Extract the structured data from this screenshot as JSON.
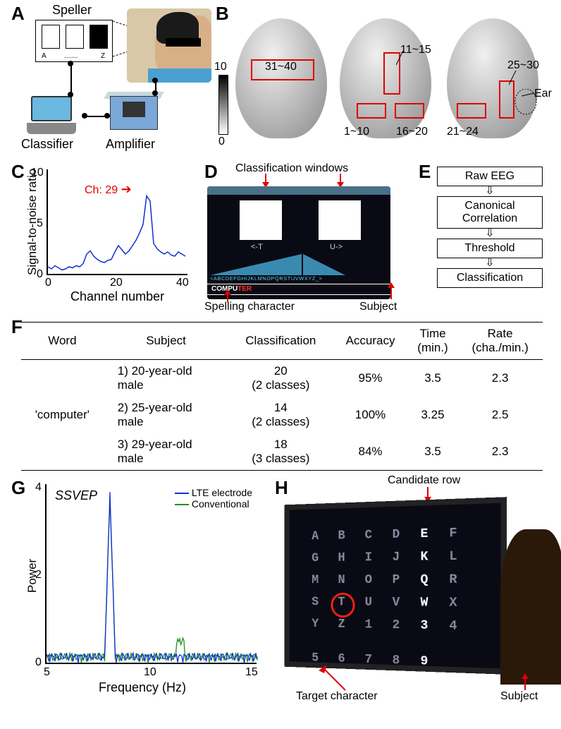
{
  "panelA": {
    "label": "A",
    "speller_title": "Speller",
    "letter_a": "A",
    "letter_z": "Z",
    "dots": ".......",
    "classifier": "Classifier",
    "amplifier": "Amplifier"
  },
  "panelB": {
    "label": "B",
    "ranges": {
      "r1": "31~40",
      "r2": "11~15",
      "r3": "1~10",
      "r4": "16~20",
      "r5": "25~30",
      "r6": "21~24",
      "ear": "Ear"
    },
    "grad_top": "10",
    "grad_bot": "0"
  },
  "panelC": {
    "label": "C",
    "ylabel": "Signal-to-noise ratio",
    "xlabel": "Channel number",
    "ch_annot": "Ch: 29",
    "yticks": [
      "0",
      "5",
      "10"
    ],
    "xticks": [
      "0",
      "20",
      "40"
    ],
    "line_color": "#1030d0",
    "data": [
      0.8,
      0.6,
      0.9,
      0.7,
      0.5,
      0.6,
      0.8,
      0.7,
      0.9,
      0.8,
      1.1,
      2.0,
      2.3,
      1.8,
      1.5,
      1.3,
      1.2,
      1.4,
      1.5,
      2.2,
      2.8,
      2.4,
      2.0,
      2.3,
      2.8,
      3.3,
      4.0,
      4.8,
      7.5,
      7.0,
      3.0,
      2.5,
      2.2,
      2.0,
      2.2,
      1.9,
      1.8,
      2.2,
      2.0,
      1.8
    ],
    "xlim": [
      0,
      40
    ],
    "ylim": [
      0,
      10
    ]
  },
  "panelD": {
    "label": "D",
    "cls_windows": "Classification windows",
    "left_t": "<-T",
    "right_u": "U->",
    "alphabet": "<ABCDEFGHIJKLMNOPQRSTUVWXYZ_>",
    "compu": "COMPU",
    "ter": "TER",
    "spelling": "Spelling character",
    "subject": "Subject"
  },
  "panelE": {
    "label": "E",
    "steps": [
      "Raw EEG",
      "Canonical\nCorrelation",
      "Threshold",
      "Classification"
    ]
  },
  "panelF": {
    "label": "F",
    "headers": [
      "Word",
      "Subject",
      "Classification",
      "Accuracy",
      "Time\n(min.)",
      "Rate\n(cha./min.)"
    ],
    "word": "'computer'",
    "rows": [
      {
        "subj_n": "1)",
        "subj": "20-year-old\nmale",
        "cls": "20\n(2 classes)",
        "acc": "95%",
        "time": "3.5",
        "rate": "2.3"
      },
      {
        "subj_n": "2)",
        "subj": "25-year-old\nmale",
        "cls": "14\n(2 classes)",
        "acc": "100%",
        "time": "3.25",
        "rate": "2.5"
      },
      {
        "subj_n": "3)",
        "subj": "29-year-old\nmale",
        "cls": "18\n(3 classes)",
        "acc": "84%",
        "time": "3.5",
        "rate": "2.3"
      }
    ]
  },
  "panelG": {
    "label": "G",
    "ssvep": "SSVEP",
    "legend_lte": "LTE electrode",
    "legend_conv": "Conventional",
    "ylabel": "Power",
    "xlabel": "Frequency (Hz)",
    "yticks": [
      "0",
      "2",
      "4"
    ],
    "xticks": [
      "5",
      "10",
      "15"
    ],
    "color_lte": "#1030d0",
    "color_conv": "#209020",
    "xlim": [
      5,
      15
    ],
    "ylim": [
      0,
      4
    ],
    "peak_x": 8,
    "peak_y": 3.6
  },
  "panelH": {
    "label": "H",
    "cand_row": "Candidate row",
    "target": "Target character",
    "subject": "Subject",
    "grid": [
      [
        "A",
        "B",
        "C",
        "D",
        "E",
        "F"
      ],
      [
        "G",
        "H",
        "I",
        "J",
        "K",
        "L"
      ],
      [
        "M",
        "N",
        "O",
        "P",
        "Q",
        "R"
      ],
      [
        "S",
        "T",
        "U",
        "V",
        "W",
        "X"
      ],
      [
        "Y",
        "Z",
        "1",
        "2",
        "3",
        "4"
      ],
      [
        "5",
        "6",
        "7",
        "8",
        "9",
        ""
      ]
    ],
    "highlight_col": 4,
    "target_pos": {
      "row": 3,
      "col": 1
    }
  }
}
